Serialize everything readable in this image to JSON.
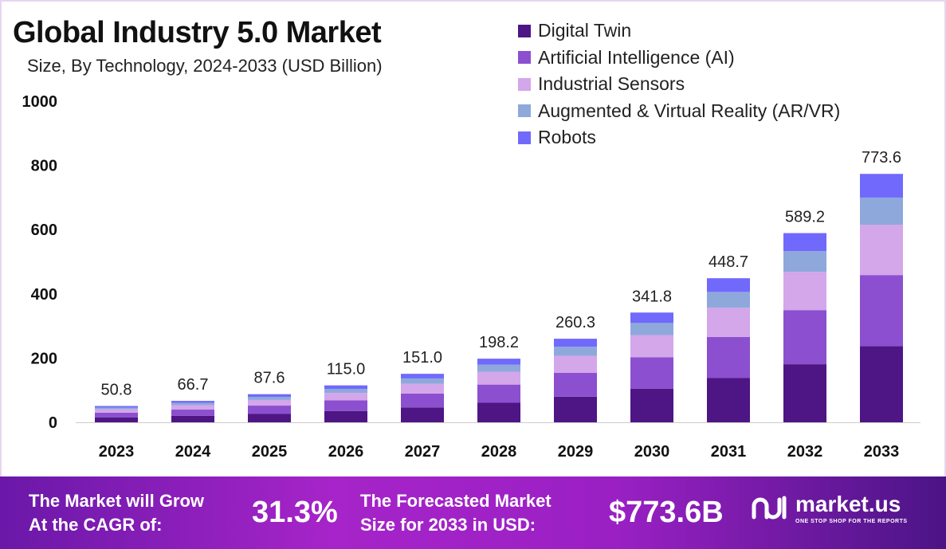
{
  "chart_data": {
    "type": "bar",
    "stacked": true,
    "title": "Global Industry 5.0 Market",
    "subtitle": "Size, By Technology, 2024-2033 (USD Billion)",
    "xlabel": "",
    "ylabel": "",
    "ylim": [
      0,
      1000
    ],
    "yticks": [
      0,
      200,
      400,
      600,
      800,
      1000
    ],
    "categories": [
      "2023",
      "2024",
      "2025",
      "2026",
      "2027",
      "2028",
      "2029",
      "2030",
      "2031",
      "2032",
      "2033"
    ],
    "totals": [
      "50.8",
      "66.7",
      "87.6",
      "115.0",
      "151.0",
      "198.2",
      "260.3",
      "341.8",
      "448.7",
      "589.2",
      "773.6"
    ],
    "series": [
      {
        "name": "Digital Twin",
        "color": "#4e1585",
        "values": [
          15.6,
          20.5,
          26.9,
          35.3,
          46.4,
          60.8,
          79.9,
          104.9,
          137.7,
          180.9,
          237.4
        ]
      },
      {
        "name": "Artificial Intelligence (AI)",
        "color": "#8b4fcf",
        "values": [
          14.5,
          19.1,
          25.1,
          32.9,
          43.2,
          56.7,
          74.4,
          97.8,
          128.3,
          168.5,
          221.2
        ]
      },
      {
        "name": "Industrial Sensors",
        "color": "#d4a6ea",
        "values": [
          10.3,
          13.5,
          17.7,
          23.2,
          30.5,
          40.0,
          52.6,
          69.0,
          90.6,
          119.0,
          156.5
        ]
      },
      {
        "name": "Augmented & Virtual Reality (AR/VR)",
        "color": "#8ea8dc",
        "values": [
          5.6,
          7.3,
          9.6,
          12.7,
          16.6,
          21.8,
          28.6,
          37.6,
          49.4,
          64.8,
          84.8
        ]
      },
      {
        "name": "Robots",
        "color": "#7069fc",
        "values": [
          4.8,
          6.3,
          8.3,
          10.9,
          14.3,
          18.9,
          24.8,
          32.5,
          42.7,
          56.0,
          73.7
        ]
      }
    ],
    "legend_position": "top-right",
    "grid": false
  },
  "footer": {
    "cagr_label_1": "The Market will Grow",
    "cagr_label_2": "At the CAGR of:",
    "cagr_value": "31.3%",
    "forecast_label_1": "The Forecasted Market",
    "forecast_label_2": "Size for 2033 in USD:",
    "forecast_value": "$773.6B",
    "brand": "market.us",
    "tagline": "ONE STOP SHOP FOR THE REPORTS"
  }
}
